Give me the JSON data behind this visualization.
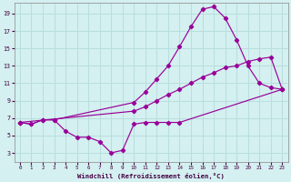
{
  "xlabel": "Windchill (Refroidissement éolien,°C)",
  "bg_color": "#d4f0f0",
  "grid_color": "#b8dede",
  "line_color": "#990099",
  "xlim": [
    -0.5,
    23.5
  ],
  "ylim": [
    2.0,
    20.2
  ],
  "xticks": [
    0,
    1,
    2,
    3,
    4,
    5,
    6,
    7,
    8,
    9,
    10,
    11,
    12,
    13,
    14,
    15,
    16,
    17,
    18,
    19,
    20,
    21,
    22,
    23
  ],
  "yticks": [
    3,
    5,
    7,
    9,
    11,
    13,
    15,
    17,
    19
  ],
  "line1_x": [
    0,
    1,
    2,
    3,
    4,
    5,
    6,
    7,
    8,
    9,
    10,
    11,
    12,
    13,
    14,
    23
  ],
  "line1_y": [
    6.5,
    6.3,
    6.8,
    6.8,
    5.5,
    4.8,
    4.8,
    4.3,
    3.0,
    3.3,
    6.3,
    6.5,
    6.5,
    6.5,
    6.5,
    10.3
  ],
  "line2_x": [
    0,
    1,
    2,
    3,
    10,
    11,
    12,
    13,
    14,
    15,
    16,
    17,
    18,
    19,
    20,
    21,
    22,
    23
  ],
  "line2_y": [
    6.5,
    6.3,
    6.8,
    6.8,
    8.8,
    10.0,
    11.5,
    13.0,
    15.2,
    17.5,
    19.5,
    19.8,
    18.5,
    16.0,
    13.0,
    11.0,
    10.5,
    10.3
  ],
  "line3_x": [
    0,
    10,
    11,
    12,
    13,
    14,
    15,
    16,
    17,
    18,
    19,
    20,
    21,
    22,
    23
  ],
  "line3_y": [
    6.5,
    7.8,
    8.3,
    9.0,
    9.7,
    10.3,
    11.0,
    11.7,
    12.2,
    12.8,
    13.0,
    13.5,
    13.8,
    14.0,
    10.3
  ]
}
